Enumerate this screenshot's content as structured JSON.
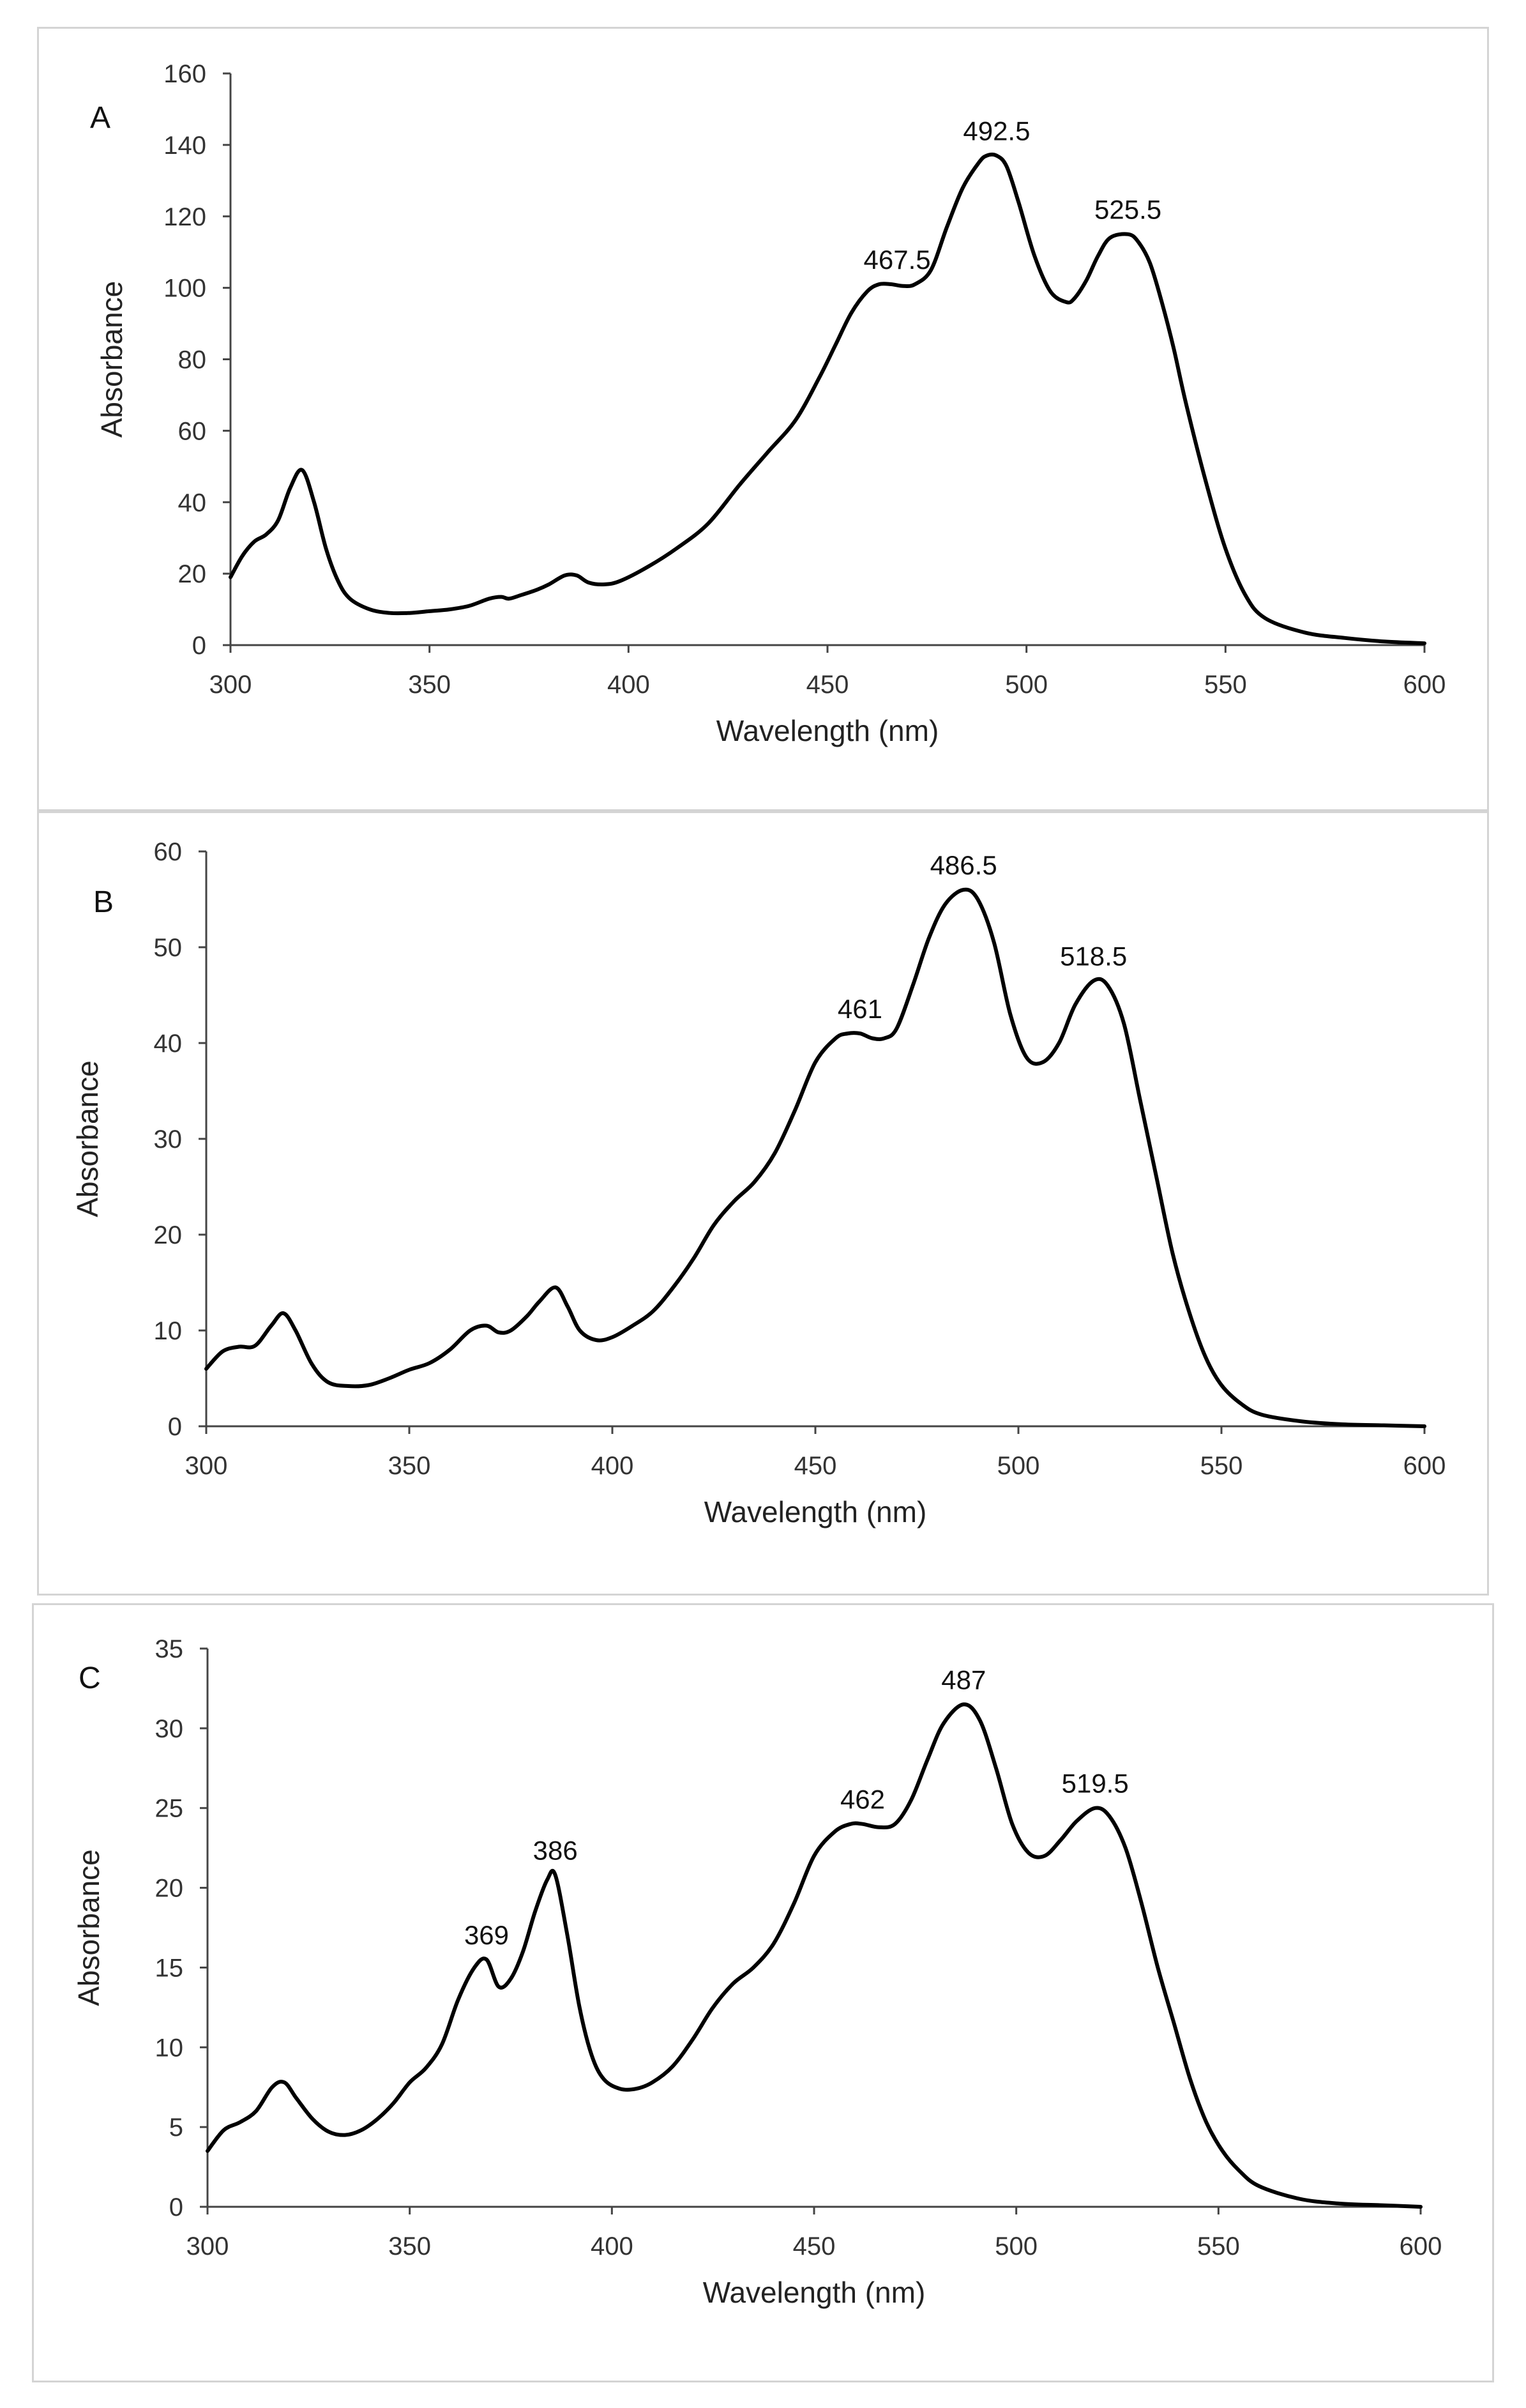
{
  "chart_data": [
    {
      "type": "line",
      "panel_label": "A",
      "xlabel": "Wavelength (nm)",
      "ylabel": "Absorbance",
      "xlim": [
        300,
        600
      ],
      "ylim": [
        0,
        160
      ],
      "xticks": [
        300,
        350,
        400,
        450,
        500,
        550,
        600
      ],
      "yticks": [
        0,
        20,
        40,
        60,
        80,
        100,
        120,
        140,
        160
      ],
      "grid": false,
      "annotations": [
        {
          "x": 467.5,
          "y": 101,
          "label": "467.5"
        },
        {
          "x": 492.5,
          "y": 137,
          "label": "492.5"
        },
        {
          "x": 525.5,
          "y": 115,
          "label": "525.5"
        }
      ],
      "series": [
        {
          "name": "spectrum",
          "x": [
            300,
            303,
            306,
            309,
            312,
            315,
            318,
            321,
            324,
            327,
            330,
            335,
            340,
            345,
            350,
            355,
            360,
            365,
            368,
            370,
            373,
            377,
            380,
            384,
            387,
            390,
            394,
            398,
            405,
            412,
            420,
            428,
            435,
            442,
            448,
            452,
            456,
            460,
            463,
            466,
            469,
            472,
            476,
            480,
            484,
            488,
            490,
            492.5,
            495,
            498,
            502,
            506,
            510,
            512,
            515,
            518,
            521,
            525.5,
            528,
            531,
            534,
            537,
            540,
            545,
            550,
            555,
            560,
            570,
            580,
            590,
            600
          ],
          "y": [
            19,
            25,
            29,
            31,
            35,
            44,
            49,
            40,
            27,
            18,
            13,
            10,
            9,
            9,
            9.5,
            10,
            11,
            13,
            13.5,
            13,
            14,
            15.5,
            17,
            19.5,
            19.5,
            17.5,
            17,
            18,
            22,
            27,
            34,
            45,
            54,
            63,
            75,
            84,
            93,
            99,
            101,
            101,
            100.5,
            101,
            105,
            117,
            128,
            135,
            137,
            137,
            134,
            124,
            109,
            99,
            96,
            97,
            102,
            109,
            114,
            115,
            113,
            107,
            96,
            83,
            68,
            46,
            27,
            14,
            7.5,
            3.5,
            2,
            1,
            0.5
          ]
        }
      ]
    },
    {
      "type": "line",
      "panel_label": "B",
      "xlabel": "Wavelength (nm)",
      "ylabel": "Absorbance",
      "xlim": [
        300,
        600
      ],
      "ylim": [
        0,
        60
      ],
      "xticks": [
        300,
        350,
        400,
        450,
        500,
        550,
        600
      ],
      "yticks": [
        0,
        10,
        20,
        30,
        40,
        50,
        60
      ],
      "grid": false,
      "annotations": [
        {
          "x": 461,
          "y": 41,
          "label": "461"
        },
        {
          "x": 486.5,
          "y": 56,
          "label": "486.5"
        },
        {
          "x": 518.5,
          "y": 46.5,
          "label": "518.5"
        }
      ],
      "series": [
        {
          "name": "spectrum",
          "x": [
            300,
            304,
            308,
            312,
            316,
            319,
            322,
            326,
            330,
            335,
            340,
            345,
            350,
            355,
            360,
            365,
            369,
            372,
            375,
            379,
            382,
            386,
            389,
            392,
            396,
            400,
            405,
            410,
            415,
            420,
            425,
            430,
            435,
            440,
            445,
            450,
            455,
            458,
            461,
            464,
            467,
            470,
            474,
            478,
            482,
            486.5,
            490,
            494,
            498,
            502,
            506,
            510,
            514,
            518.5,
            522,
            526,
            530,
            534,
            538,
            542,
            546,
            550,
            555,
            560,
            570,
            580,
            590,
            600
          ],
          "y": [
            6,
            7.8,
            8.3,
            8.4,
            10.5,
            11.8,
            10,
            6.5,
            4.6,
            4.2,
            4.3,
            5,
            5.9,
            6.6,
            8,
            10,
            10.5,
            9.8,
            10,
            11.5,
            13,
            14.5,
            12.5,
            10,
            9,
            9.3,
            10.5,
            12,
            14.5,
            17.5,
            21,
            23.5,
            25.5,
            28.5,
            33,
            38,
            40.5,
            41,
            41,
            40.5,
            40.5,
            41.5,
            46,
            51,
            54.5,
            56,
            55,
            50.5,
            43,
            38.5,
            38,
            40,
            44,
            46.5,
            46,
            42,
            34,
            26,
            18,
            12,
            7.3,
            4.3,
            2.3,
            1.2,
            0.5,
            0.2,
            0.1,
            0
          ]
        }
      ]
    },
    {
      "type": "line",
      "panel_label": "C",
      "xlabel": "Wavelength (nm)",
      "ylabel": "Absorbance",
      "xlim": [
        300,
        600
      ],
      "ylim": [
        0,
        35
      ],
      "xticks": [
        300,
        350,
        400,
        450,
        500,
        550,
        600
      ],
      "yticks": [
        0,
        5,
        10,
        15,
        20,
        25,
        30,
        35
      ],
      "grid": false,
      "annotations": [
        {
          "x": 369,
          "y": 15.5,
          "label": "369"
        },
        {
          "x": 386,
          "y": 20.8,
          "label": "386"
        },
        {
          "x": 462,
          "y": 24,
          "label": "462"
        },
        {
          "x": 487,
          "y": 31.5,
          "label": "487"
        },
        {
          "x": 519.5,
          "y": 25,
          "label": "519.5"
        }
      ],
      "series": [
        {
          "name": "spectrum",
          "x": [
            300,
            304,
            308,
            312,
            316,
            319,
            322,
            326,
            330,
            334,
            338,
            342,
            346,
            350,
            354,
            358,
            362,
            366,
            369,
            372,
            375,
            378,
            381,
            384,
            386,
            389,
            392,
            395,
            398,
            402,
            406,
            410,
            415,
            420,
            425,
            430,
            435,
            440,
            445,
            450,
            455,
            459,
            462,
            466,
            470,
            474,
            478,
            482,
            487,
            491,
            495,
            499,
            503,
            507,
            511,
            515,
            519.5,
            523,
            527,
            531,
            535,
            539,
            543,
            547,
            551,
            555,
            560,
            570,
            580,
            590,
            600
          ],
          "y": [
            3.5,
            4.8,
            5.3,
            6,
            7.5,
            7.8,
            6.8,
            5.5,
            4.7,
            4.5,
            4.8,
            5.5,
            6.5,
            7.8,
            8.7,
            10.2,
            13,
            15,
            15.5,
            13.8,
            14.3,
            16,
            18.5,
            20.5,
            20.8,
            17,
            12.5,
            9.5,
            8,
            7.4,
            7.4,
            7.8,
            8.8,
            10.5,
            12.5,
            14,
            15,
            16.5,
            19,
            22,
            23.5,
            24,
            24,
            23.8,
            24,
            25.5,
            28,
            30.3,
            31.5,
            30.5,
            27.5,
            24,
            22.2,
            22,
            23,
            24.2,
            25,
            24.5,
            22.5,
            19,
            15,
            11.5,
            8,
            5.3,
            3.5,
            2.3,
            1.3,
            0.5,
            0.2,
            0.1,
            0
          ]
        }
      ]
    }
  ]
}
